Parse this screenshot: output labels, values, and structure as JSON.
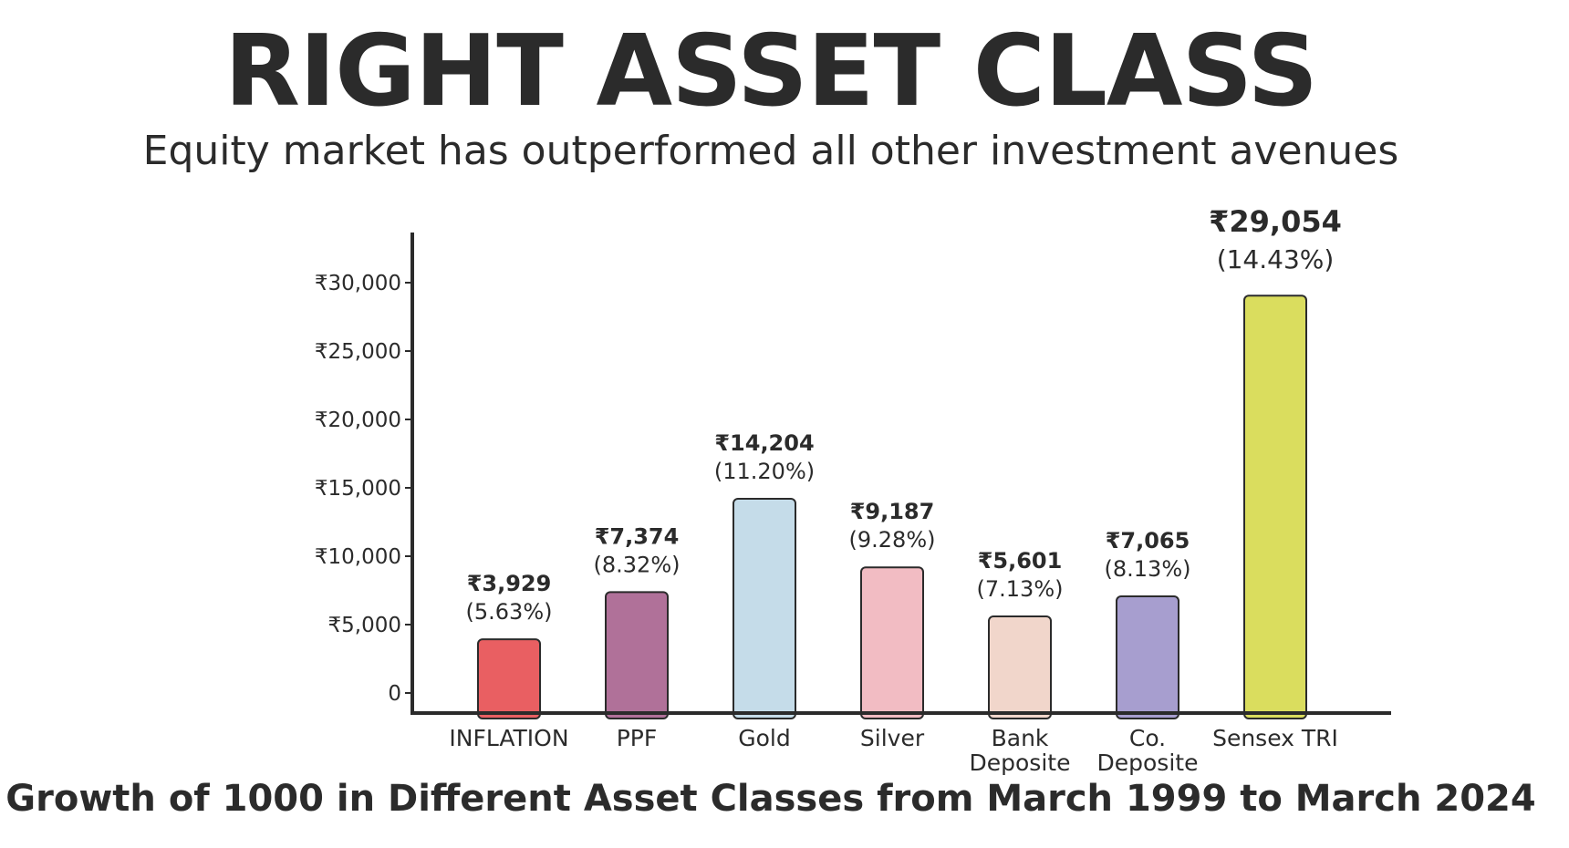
{
  "header": {
    "title": "RIGHT ASSET CLASS",
    "subtitle": "Equity market has outperformed all other investment avenues"
  },
  "footer": {
    "caption": "Growth of 1000 in Different Asset Classes from March 1999 to March 2024"
  },
  "chart_data": {
    "type": "bar",
    "categories": [
      [
        "INFLATION"
      ],
      [
        "PPF"
      ],
      [
        "Gold"
      ],
      [
        "Silver"
      ],
      [
        "Bank",
        "Deposite"
      ],
      [
        "Co.",
        "Deposite"
      ],
      [
        "Sensex TRI"
      ]
    ],
    "values": [
      3929,
      7374,
      14204,
      9187,
      5601,
      7065,
      29054
    ],
    "value_labels": [
      "₹3,929",
      "₹7,374",
      "₹14,204",
      "₹9,187",
      "₹5,601",
      "₹7,065",
      "₹29,054"
    ],
    "percent_labels": [
      "(5.63%)",
      "(8.32%)",
      "(11.20%)",
      "(9.28%)",
      "(7.13%)",
      "(8.13%)",
      "(14.43%)"
    ],
    "bar_colors": [
      "#e95f62",
      "#b07199",
      "#c5dce9",
      "#f2bcc3",
      "#f1d6cb",
      "#a79ecf",
      "#dadd5e"
    ],
    "yticks": [
      0,
      5000,
      10000,
      15000,
      20000,
      25000,
      30000
    ],
    "ytick_labels": [
      "0",
      "₹5,000",
      "₹10,000",
      "₹15,000",
      "₹20,000",
      "₹25,000",
      "₹30,000"
    ],
    "ylim": [
      0,
      30000
    ],
    "grid": false,
    "legend": "none",
    "highlight_index": 6
  }
}
